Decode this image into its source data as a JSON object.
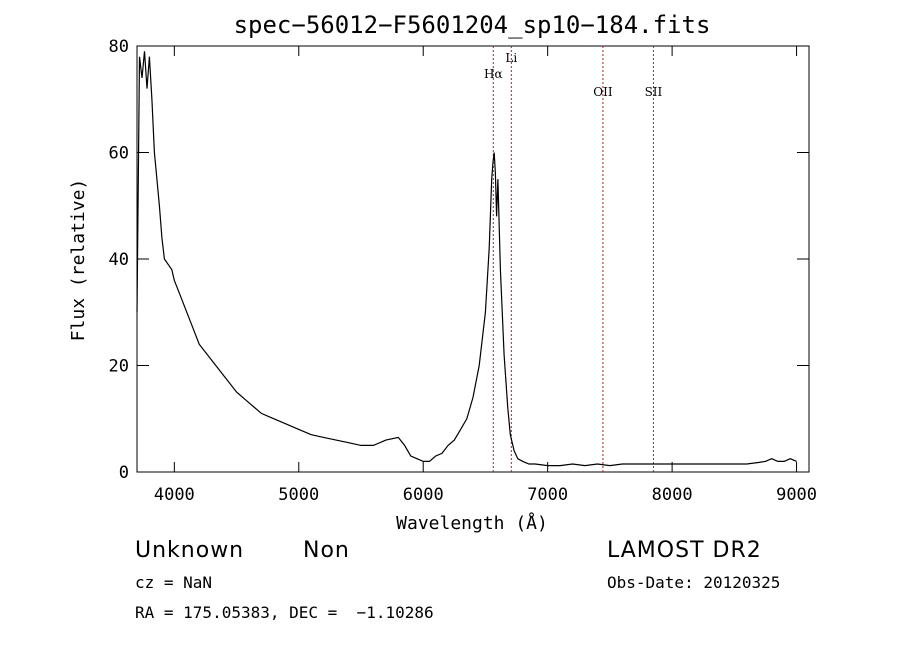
{
  "chart_data": {
    "type": "line",
    "title": "spec−56012−F5601204_sp10−184.fits",
    "xlabel": "Wavelength (Å)",
    "ylabel": "Flux (relative)",
    "xlim": [
      3700,
      9100
    ],
    "ylim": [
      0,
      80
    ],
    "x_ticks": [
      4000,
      5000,
      6000,
      7000,
      8000,
      9000
    ],
    "y_ticks": [
      0,
      20,
      40,
      60,
      80
    ],
    "grid": false,
    "lines": [
      {
        "name": "Hα",
        "x": 6563
      },
      {
        "name": "Li",
        "x": 6708
      },
      {
        "name": "OII",
        "x": 7444
      },
      {
        "name": "SII",
        "x": 7850
      }
    ],
    "series": [
      {
        "x": [
          3700,
          3720,
          3740,
          3760,
          3780,
          3800,
          3820,
          3840,
          3860,
          3880,
          3900,
          3920,
          3950,
          3980,
          4000,
          4050,
          4100,
          4150,
          4200,
          4300,
          4400,
          4500,
          4600,
          4700,
          4800,
          4900,
          5000,
          5100,
          5200,
          5300,
          5400,
          5500,
          5600,
          5700,
          5800,
          5850,
          5900,
          5950,
          6000,
          6050,
          6100,
          6150,
          6200,
          6250,
          6300,
          6350,
          6400,
          6450,
          6500,
          6530,
          6550,
          6560,
          6570,
          6580,
          6590,
          6600,
          6620,
          6650,
          6680,
          6700,
          6730,
          6760,
          6800,
          6850,
          6900,
          7000,
          7100,
          7200,
          7300,
          7400,
          7500,
          7600,
          7700,
          7800,
          7900,
          8000,
          8100,
          8200,
          8300,
          8400,
          8500,
          8600,
          8700,
          8750,
          8800,
          8850,
          8900,
          8950,
          9000
        ],
        "y": [
          30,
          78,
          74,
          79,
          72,
          78,
          70,
          60,
          55,
          50,
          44,
          40,
          39,
          38,
          36,
          33,
          30,
          27,
          24,
          21,
          18,
          15,
          13,
          11,
          10,
          9,
          8,
          7,
          6.5,
          6,
          5.5,
          5,
          5,
          6,
          6.5,
          5,
          3,
          2.5,
          2,
          2,
          3,
          3.5,
          5,
          6,
          8,
          10,
          14,
          20,
          30,
          42,
          55,
          58,
          60,
          56,
          48,
          55,
          38,
          22,
          12,
          7,
          4,
          2.5,
          2,
          1.5,
          1.5,
          1.2,
          1.2,
          1.5,
          1.2,
          1.5,
          1.2,
          1.5,
          1.5,
          1.5,
          1.5,
          1.5,
          1.5,
          1.5,
          1.5,
          1.5,
          1.5,
          1.5,
          1.8,
          2,
          2.5,
          2,
          2,
          2.5,
          2
        ]
      }
    ]
  },
  "info": {
    "class": "Unknown",
    "subclass": "Non",
    "survey": "LAMOST DR2",
    "cz": "cz = NaN",
    "obs_date": "Obs-Date: 20120325",
    "radec": "RA = 175.05383, DEC =  −1.10286"
  }
}
